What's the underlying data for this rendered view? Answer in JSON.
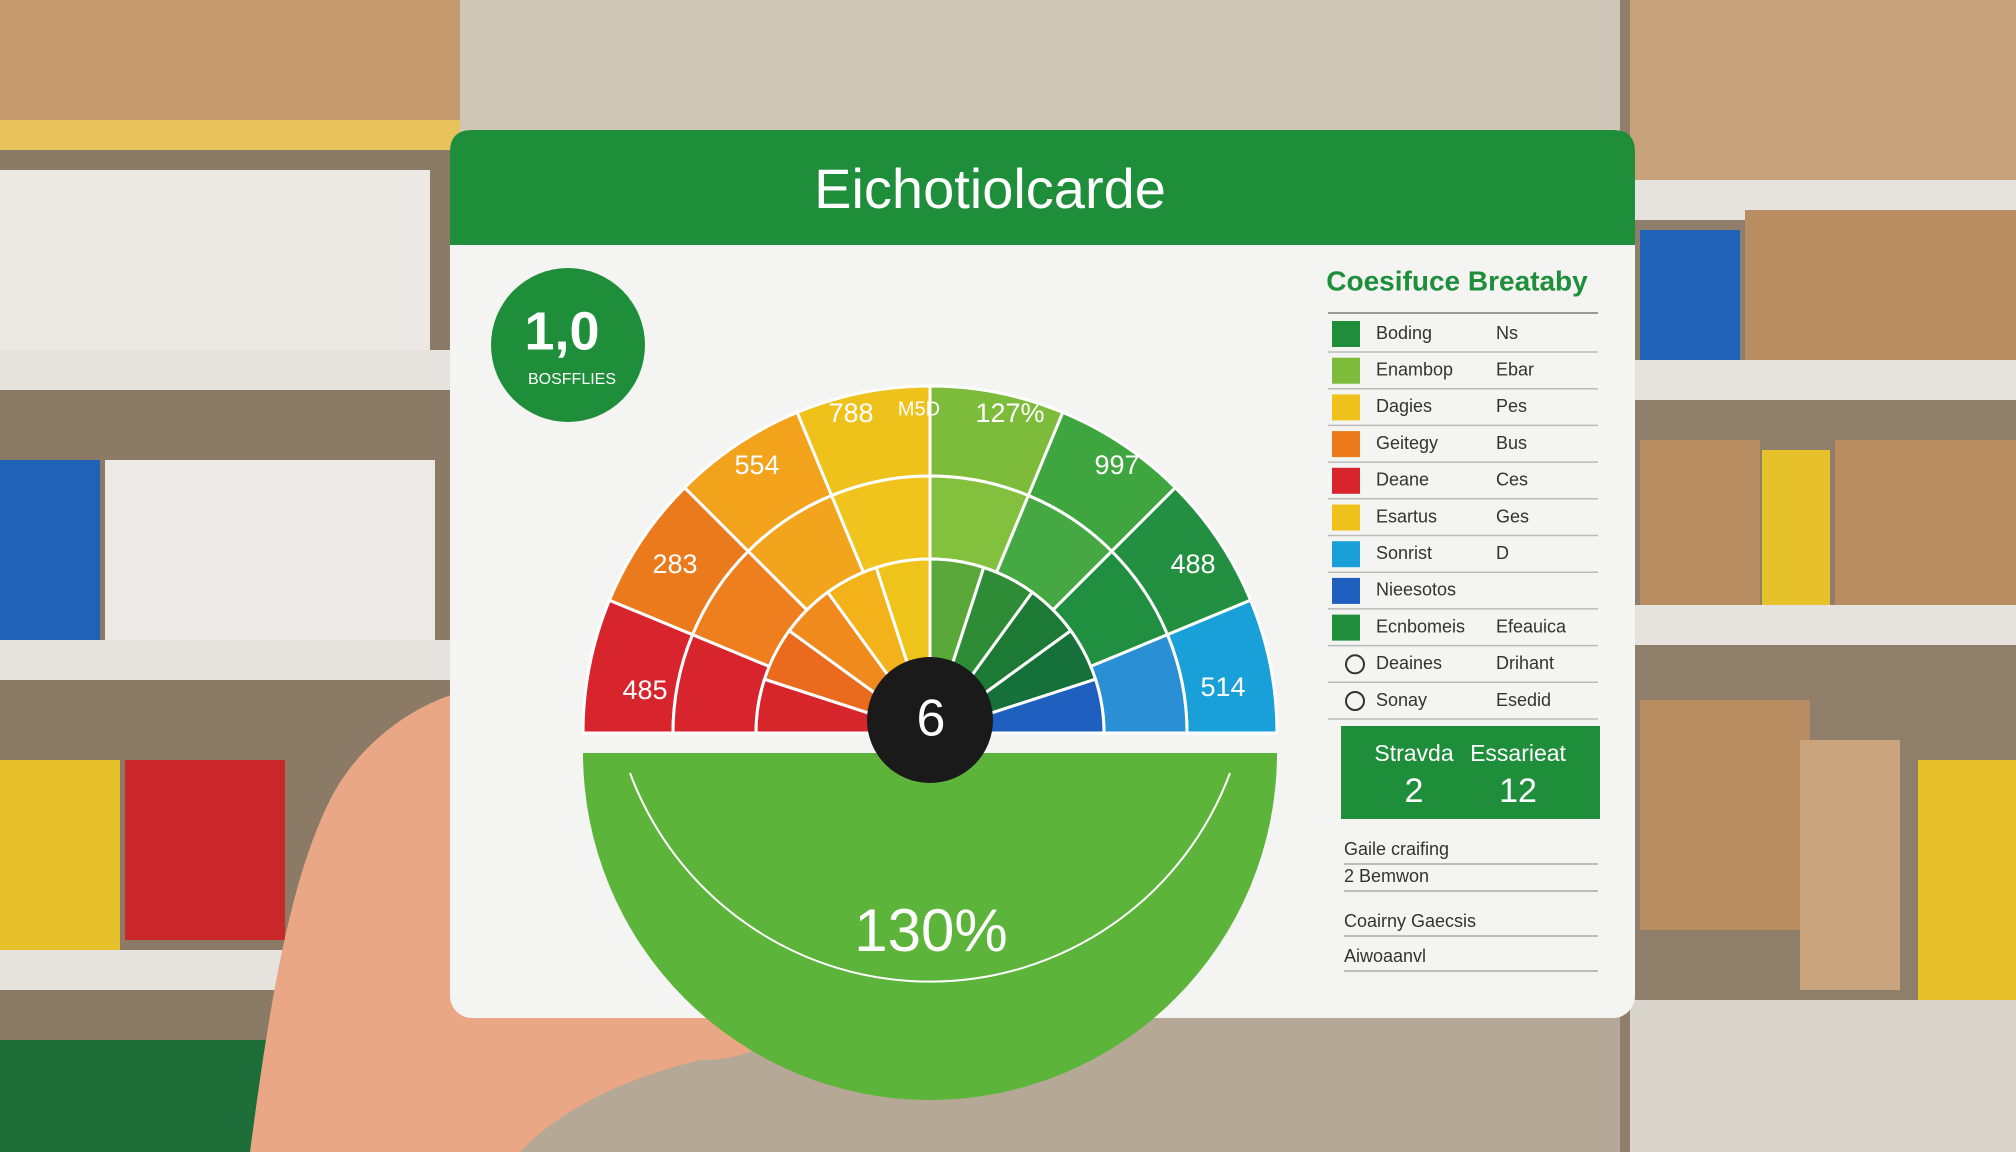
{
  "card": {
    "title": "Eichotiolcarde"
  },
  "badge": {
    "value": "1,0",
    "label": "BOSFFLIES"
  },
  "gauge": {
    "labels": [
      "554",
      "788",
      "M5D",
      "127%",
      "997",
      "488",
      "514",
      "485",
      "283"
    ],
    "center": "6",
    "percent": "130%"
  },
  "legend": {
    "title": "Coesifuce Breataby",
    "rows": [
      [
        "Boding",
        "Ns"
      ],
      [
        "Enambop",
        "Ebar"
      ],
      [
        "Dagies",
        "Pes"
      ],
      [
        "Geitegy",
        "Bus"
      ],
      [
        "Deane",
        "Ces"
      ],
      [
        "Esartus",
        "Ges"
      ],
      [
        "Sonrist",
        "D"
      ],
      [
        "Nieesotos"
      ],
      [
        "Ecnbomeis",
        "Efeauica"
      ],
      [
        "Deaines",
        "Drihant"
      ],
      [
        "Sonay",
        "Esedid"
      ]
    ]
  },
  "summary": {
    "heads": [
      "Stravda",
      "Essarieat"
    ],
    "values": [
      "2",
      "12"
    ]
  },
  "notes": [
    "Gaile craifing",
    "2 Bemwon",
    "Coairny Gaecsis",
    "Aiwoaanvl"
  ]
}
